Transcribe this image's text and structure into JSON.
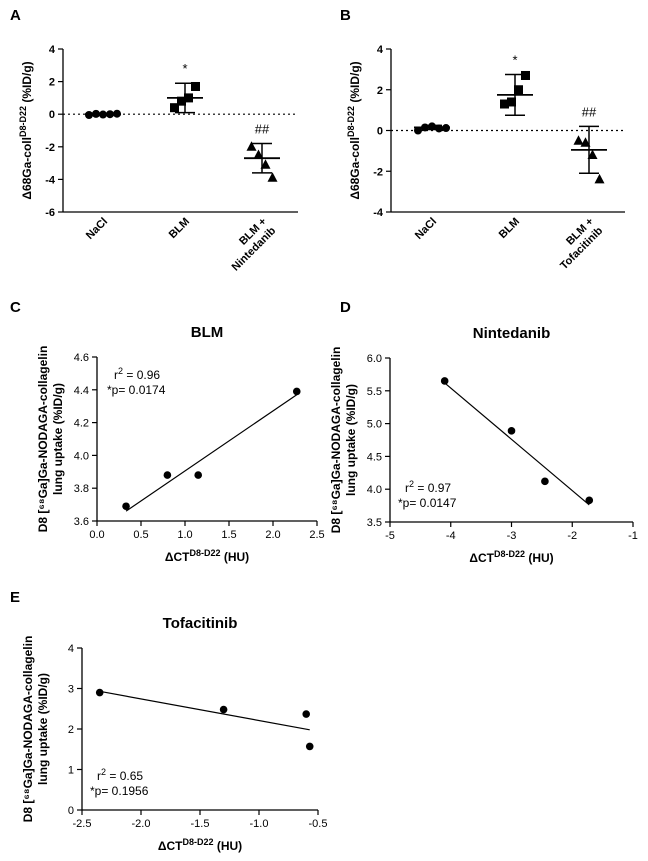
{
  "panels": {
    "A": "A",
    "B": "B",
    "C": "C",
    "D": "D",
    "E": "E"
  },
  "chart_data": [
    {
      "id": "A",
      "type": "scatter",
      "subtype": "dot-plot-with-mean-sd",
      "ylabel_main": "Δ68Ga-coll",
      "ylabel_sup": "D8-D22",
      "ylabel_unit": "(%ID/g)",
      "ylim": [
        -6,
        4
      ],
      "yticks": [
        -6,
        -4,
        -2,
        0,
        2,
        4
      ],
      "categories": [
        "NaCl",
        "BLM",
        "BLM +|Nintedanib"
      ],
      "groups": [
        {
          "name": "NaCl",
          "marker": "circle",
          "points": [
            -0.05,
            0.02,
            -0.02,
            0.0,
            0.03
          ],
          "mean": 0.0,
          "sd": 0.05,
          "annotation": ""
        },
        {
          "name": "BLM",
          "marker": "square",
          "points": [
            0.4,
            0.8,
            1.0,
            1.7
          ],
          "mean": 1.0,
          "sd": 0.9,
          "annotation": "*"
        },
        {
          "name": "BLM + Nintedanib",
          "marker": "triangle",
          "points": [
            -2.0,
            -2.5,
            -3.1,
            -3.9
          ],
          "mean": -2.7,
          "sd": 0.9,
          "annotation": "##"
        }
      ],
      "reference_line": 0
    },
    {
      "id": "B",
      "type": "scatter",
      "subtype": "dot-plot-with-mean-sd",
      "ylabel_main": "Δ68Ga-coll",
      "ylabel_sup": "D8-D22",
      "ylabel_unit": "(%ID/g)",
      "ylim": [
        -4,
        4
      ],
      "yticks": [
        -4,
        -2,
        0,
        2,
        4
      ],
      "categories": [
        "NaCl",
        "BLM",
        "BLM +|Tofacitinib"
      ],
      "groups": [
        {
          "name": "NaCl",
          "marker": "circle",
          "points": [
            0.0,
            0.15,
            0.2,
            0.1,
            0.12
          ],
          "mean": 0.15,
          "sd": 0.1,
          "annotation": ""
        },
        {
          "name": "BLM",
          "marker": "square",
          "points": [
            1.3,
            1.4,
            2.0,
            2.7
          ],
          "mean": 1.75,
          "sd": 1.0,
          "annotation": "*"
        },
        {
          "name": "BLM + Tofacitinib",
          "marker": "triangle",
          "points": [
            -0.5,
            -0.6,
            -1.2,
            -2.4
          ],
          "mean": -0.95,
          "sd": 1.15,
          "annotation": "##"
        }
      ],
      "reference_line": 0
    },
    {
      "id": "C",
      "type": "scatter",
      "title": "BLM",
      "ylabel_lines": [
        "D8 [⁶⁸Ga]Ga-NODAGA-collagelin",
        "lung uptake (%ID/g)"
      ],
      "xlabel_main": "ΔCT",
      "xlabel_sup": "D8-D22",
      "xlabel_unit": "(HU)",
      "xlim": [
        0.0,
        2.5
      ],
      "xticks": [
        "0.0",
        "0.5",
        "1.0",
        "1.5",
        "2.0",
        "2.5"
      ],
      "ylim": [
        3.6,
        4.6
      ],
      "yticks": [
        "3.6",
        "3.8",
        "4.0",
        "4.2",
        "4.4",
        "4.6"
      ],
      "points": [
        [
          0.33,
          3.69
        ],
        [
          0.8,
          3.88
        ],
        [
          1.15,
          3.88
        ],
        [
          2.27,
          4.39
        ]
      ],
      "fit_line": [
        [
          0.33,
          3.66
        ],
        [
          2.27,
          4.37
        ]
      ],
      "stats_r": "r",
      "stats_sup": "2",
      "stats_r2": " = 0.96",
      "stats_p": "*p= 0.0174",
      "stats_position": "top-left"
    },
    {
      "id": "D",
      "type": "scatter",
      "title": "Nintedanib",
      "ylabel_lines": [
        "D8 [⁶⁸Ga]Ga-NODAGA-collagelin",
        "lung uptake (%ID/g)"
      ],
      "xlabel_main": "ΔCT",
      "xlabel_sup": "D8-D22",
      "xlabel_unit": "(HU)",
      "xlim": [
        -5,
        -1
      ],
      "xticks": [
        "-5",
        "-4",
        "-3",
        "-2",
        "-1"
      ],
      "ylim": [
        3.5,
        6.0
      ],
      "yticks": [
        "3.5",
        "4.0",
        "4.5",
        "5.0",
        "5.5",
        "6.0"
      ],
      "points": [
        [
          -4.1,
          5.65
        ],
        [
          -3.0,
          4.89
        ],
        [
          -2.45,
          4.12
        ],
        [
          -1.72,
          3.83
        ]
      ],
      "fit_line": [
        [
          -4.1,
          5.62
        ],
        [
          -1.72,
          3.76
        ]
      ],
      "stats_r": "r",
      "stats_sup": "2",
      "stats_r2": " = 0.97",
      "stats_p": "*p= 0.0147",
      "stats_position": "bottom-left"
    },
    {
      "id": "E",
      "type": "scatter",
      "title": "Tofacitinib",
      "ylabel_lines": [
        "D8 [⁶⁸Ga]Ga-NODAGA-collagelin",
        "lung uptake (%ID/g)"
      ],
      "xlabel_main": "ΔCT",
      "xlabel_sup": "D8-D22",
      "xlabel_unit": "(HU)",
      "xlim": [
        -2.5,
        -0.5
      ],
      "xticks": [
        "-2.5",
        "-2.0",
        "-1.5",
        "-1.0",
        "-0.5"
      ],
      "ylim": [
        0,
        4
      ],
      "yticks": [
        "0",
        "1",
        "2",
        "3",
        "4"
      ],
      "points": [
        [
          -2.35,
          2.9
        ],
        [
          -1.3,
          2.48
        ],
        [
          -0.6,
          2.37
        ],
        [
          -0.57,
          1.57
        ]
      ],
      "fit_line": [
        [
          -2.35,
          2.93
        ],
        [
          -0.57,
          1.98
        ]
      ],
      "stats_r": "r",
      "stats_sup": "2",
      "stats_r2": " = 0.65",
      "stats_p": "*p= 0.1956",
      "stats_position": "bottom-left"
    }
  ]
}
